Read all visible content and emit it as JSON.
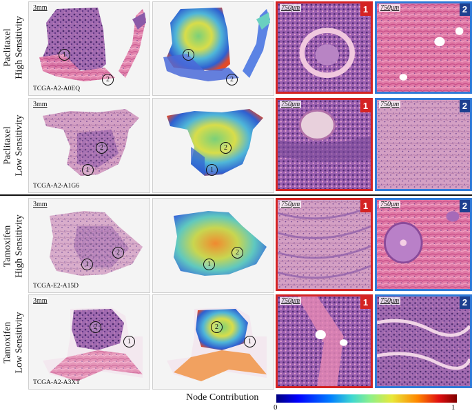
{
  "rows": [
    {
      "label_line1": "Paclitaxel",
      "label_line2": "High Sensitivity",
      "case_id": "TCGA-A2-A0EQ",
      "wsi_scale": "3mm",
      "patch_scale": "750μm",
      "marker1": "1",
      "marker2": "2"
    },
    {
      "label_line1": "Paclitaxel",
      "label_line2": "Low Sensitivity",
      "case_id": "TCGA-A2-A1G6",
      "wsi_scale": "3mm",
      "patch_scale": "750μm",
      "marker1": "1",
      "marker2": "2"
    },
    {
      "label_line1": "Tamoxifen",
      "label_line2": "High Sensitivity",
      "case_id": "TCGA-E2-A15D",
      "wsi_scale": "3mm",
      "patch_scale": "750μm",
      "marker1": "1",
      "marker2": "2"
    },
    {
      "label_line1": "Tamoxifen",
      "label_line2": "Low Sensitivity",
      "case_id": "TCGA-A2-A3XT",
      "wsi_scale": "3mm",
      "patch_scale": "750μm",
      "marker1": "1",
      "marker2": "2"
    }
  ],
  "colorbar": {
    "label": "Node Contribution",
    "min": "0",
    "max": "1"
  },
  "colors": {
    "region1_border": "#d42323",
    "region2_border": "#2f7ad8",
    "region2_badge": "#1d3f8f"
  }
}
